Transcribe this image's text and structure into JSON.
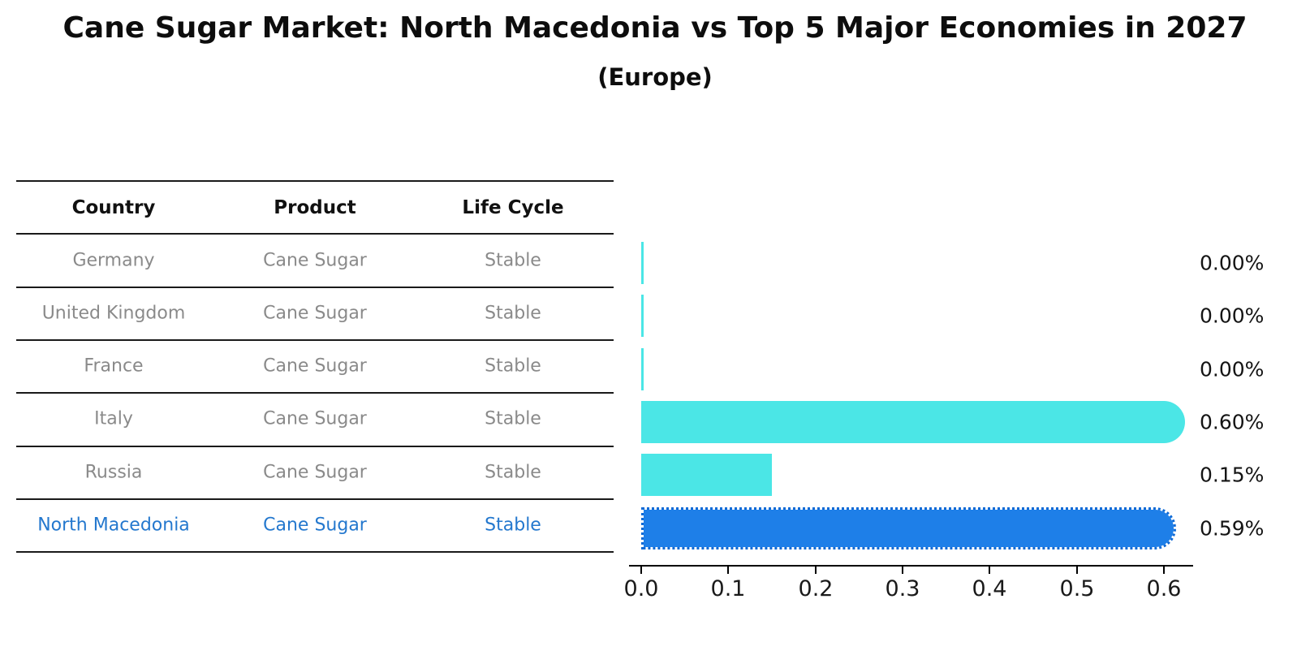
{
  "title": "Cane Sugar Market: North Macedonia vs Top 5 Major Economies in 2027",
  "subtitle": "(Europe)",
  "table": {
    "headers": [
      "Country",
      "Product",
      "Life Cycle"
    ],
    "rows": [
      {
        "country": "Germany",
        "product": "Cane Sugar",
        "life_cycle": "Stable",
        "highlight": false
      },
      {
        "country": "United Kingdom",
        "product": "Cane Sugar",
        "life_cycle": "Stable",
        "highlight": false
      },
      {
        "country": "France",
        "product": "Cane Sugar",
        "life_cycle": "Stable",
        "highlight": false
      },
      {
        "country": "Italy",
        "product": "Cane Sugar",
        "life_cycle": "Stable",
        "highlight": false
      },
      {
        "country": "Russia",
        "product": "Cane Sugar",
        "life_cycle": "Stable",
        "highlight": false
      },
      {
        "country": "North Macedonia",
        "product": "Cane Sugar",
        "life_cycle": "Stable",
        "highlight": true
      }
    ]
  },
  "chart_data": {
    "type": "bar",
    "orientation": "horizontal",
    "title": "Cane Sugar Market: North Macedonia vs Top 5 Major Economies in 2027 (Europe)",
    "categories": [
      "Germany",
      "United Kingdom",
      "France",
      "Italy",
      "Russia",
      "North Macedonia"
    ],
    "values": [
      0.0,
      0.0,
      0.0,
      0.6,
      0.15,
      0.59
    ],
    "value_labels": [
      "0.00%",
      "0.00%",
      "0.00%",
      "0.60%",
      "0.15%",
      "0.59%"
    ],
    "highlight_index": 5,
    "xlabel": "",
    "ylabel": "",
    "xlim": [
      0.0,
      0.633
    ],
    "x_ticks": [
      "0.0",
      "0.1",
      "0.2",
      "0.3",
      "0.4",
      "0.5",
      "0.6"
    ],
    "grid": false,
    "legend_position": "none",
    "bar_color": "#4be6e6",
    "highlight_bar_color": "#1e7fe8",
    "highlight_text_color": "#2478ce"
  },
  "colors": {
    "background": "#ffffff",
    "table_line": "#1a1a1a",
    "row_text": "#8a8a8a",
    "header_text": "#111111",
    "axis": "#000000"
  }
}
